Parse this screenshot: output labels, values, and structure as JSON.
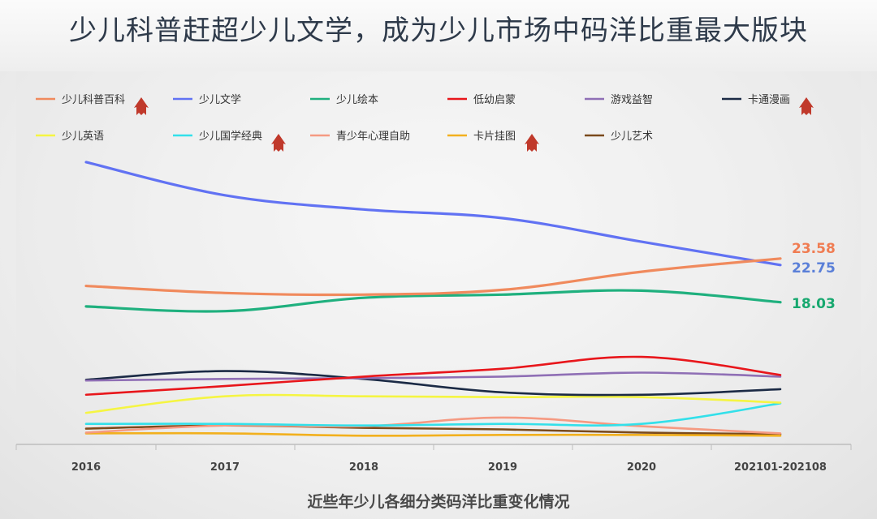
{
  "title": "少儿科普赶超少儿文学，成为少儿市场中码洋比重最大版块",
  "caption": "近些年少儿各细分类码洋比重变化情况",
  "chart_data": {
    "type": "line",
    "categories": [
      "2016",
      "2017",
      "2018",
      "2019",
      "2020",
      "202101-202108"
    ],
    "ylim": [
      0,
      36
    ],
    "legend_rows": [
      [
        "少儿科普百科",
        "少儿文学",
        "少儿绘本",
        "低幼启蒙",
        "游戏益智",
        "卡通漫画"
      ],
      [
        "少儿英语",
        "少儿国学经典",
        "青少年心理自助",
        "卡片挂图",
        "少儿艺术"
      ]
    ],
    "rising_series": [
      "少儿科普百科",
      "卡通漫画",
      "少儿国学经典",
      "卡片挂图"
    ],
    "rise_marker_icon": "up-arrow-icon",
    "series": [
      {
        "name": "少儿科普百科",
        "color": "#f08a5d",
        "values": [
          20.1,
          19.2,
          19.0,
          19.6,
          21.9,
          23.58
        ],
        "label": "23.58",
        "label_color": "#f07c52"
      },
      {
        "name": "少儿文学",
        "color": "#6172f3",
        "values": [
          35.8,
          31.6,
          29.8,
          28.7,
          25.7,
          22.75
        ],
        "label": "22.75",
        "label_color": "#5a7fd8"
      },
      {
        "name": "少儿绘本",
        "color": "#1fb07e",
        "values": [
          17.5,
          16.9,
          18.6,
          19.0,
          19.5,
          18.03
        ],
        "label": "18.03",
        "label_color": "#17a86f"
      },
      {
        "name": "低幼启蒙",
        "color": "#e8161b",
        "values": [
          6.3,
          7.4,
          8.6,
          9.6,
          11.1,
          8.8
        ]
      },
      {
        "name": "游戏益智",
        "color": "#8f6fb5",
        "values": [
          8.1,
          8.3,
          8.4,
          8.6,
          9.1,
          8.6
        ]
      },
      {
        "name": "卡通漫画",
        "color": "#1b2a45",
        "values": [
          8.2,
          9.3,
          8.3,
          6.6,
          6.3,
          7.0
        ]
      },
      {
        "name": "少儿英语",
        "color": "#f5f542",
        "values": [
          4.0,
          6.1,
          6.1,
          6.0,
          6.0,
          5.3
        ]
      },
      {
        "name": "少儿国学经典",
        "color": "#33e0ea",
        "values": [
          2.6,
          2.6,
          2.4,
          2.6,
          2.6,
          5.2
        ]
      },
      {
        "name": "青少年心理自助",
        "color": "#f59a82",
        "values": [
          1.5,
          2.4,
          2.3,
          3.4,
          2.3,
          1.4
        ]
      },
      {
        "name": "卡片挂图",
        "color": "#f2b01e",
        "values": [
          1.4,
          1.4,
          1.1,
          1.2,
          1.2,
          1.1
        ]
      },
      {
        "name": "少儿艺术",
        "color": "#7a4a1c",
        "values": [
          2.0,
          2.4,
          2.1,
          1.9,
          1.5,
          1.3
        ]
      }
    ]
  }
}
